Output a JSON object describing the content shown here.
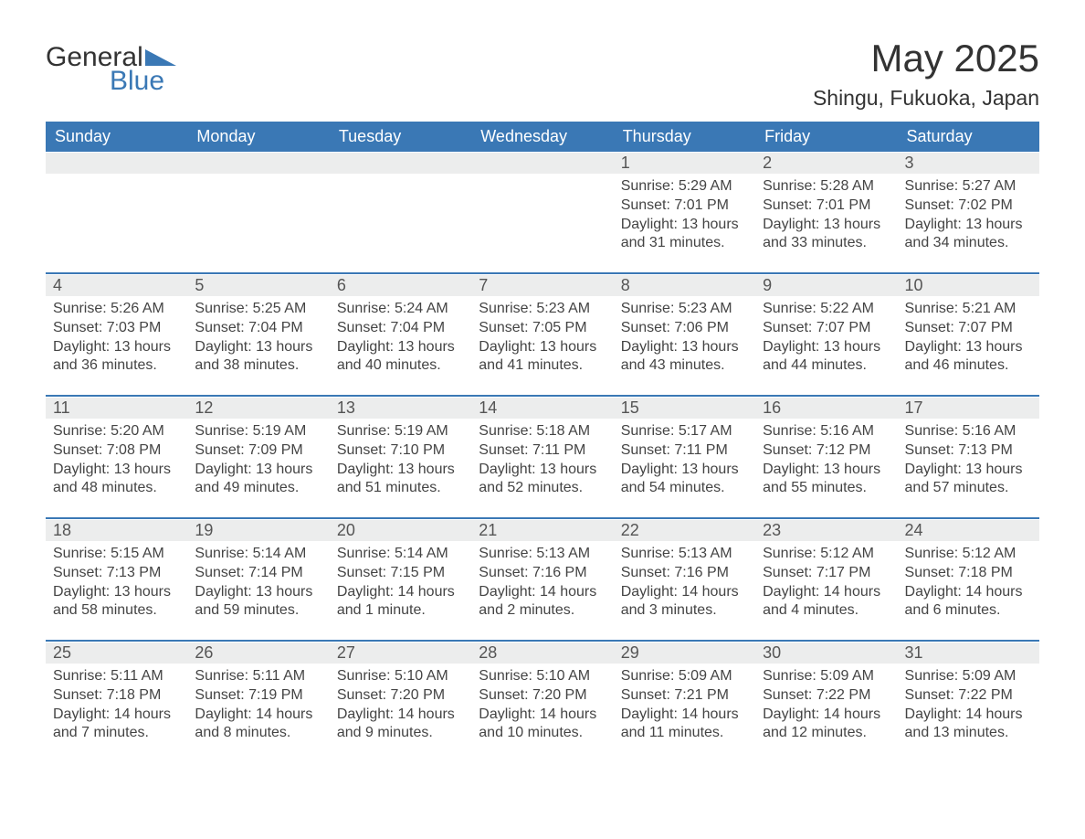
{
  "logo": {
    "word1": "General",
    "word2": "Blue"
  },
  "title": "May 2025",
  "location": "Shingu, Fukuoka, Japan",
  "colors": {
    "header_bg": "#3a78b5",
    "header_text": "#ffffff",
    "daynum_bg": "#eceded",
    "daynum_text": "#555555",
    "body_text": "#444444",
    "week_border": "#3a78b5",
    "page_bg": "#ffffff",
    "logo_accent": "#3a78b5"
  },
  "typography": {
    "title_fontsize": 42,
    "location_fontsize": 23,
    "dow_fontsize": 18,
    "daynum_fontsize": 18,
    "body_fontsize": 16
  },
  "dow": [
    "Sunday",
    "Monday",
    "Tuesday",
    "Wednesday",
    "Thursday",
    "Friday",
    "Saturday"
  ],
  "weeks": [
    [
      {
        "n": "",
        "sunrise": "",
        "sunset": "",
        "daylight": ""
      },
      {
        "n": "",
        "sunrise": "",
        "sunset": "",
        "daylight": ""
      },
      {
        "n": "",
        "sunrise": "",
        "sunset": "",
        "daylight": ""
      },
      {
        "n": "",
        "sunrise": "",
        "sunset": "",
        "daylight": ""
      },
      {
        "n": "1",
        "sunrise": "Sunrise: 5:29 AM",
        "sunset": "Sunset: 7:01 PM",
        "daylight": "Daylight: 13 hours and 31 minutes."
      },
      {
        "n": "2",
        "sunrise": "Sunrise: 5:28 AM",
        "sunset": "Sunset: 7:01 PM",
        "daylight": "Daylight: 13 hours and 33 minutes."
      },
      {
        "n": "3",
        "sunrise": "Sunrise: 5:27 AM",
        "sunset": "Sunset: 7:02 PM",
        "daylight": "Daylight: 13 hours and 34 minutes."
      }
    ],
    [
      {
        "n": "4",
        "sunrise": "Sunrise: 5:26 AM",
        "sunset": "Sunset: 7:03 PM",
        "daylight": "Daylight: 13 hours and 36 minutes."
      },
      {
        "n": "5",
        "sunrise": "Sunrise: 5:25 AM",
        "sunset": "Sunset: 7:04 PM",
        "daylight": "Daylight: 13 hours and 38 minutes."
      },
      {
        "n": "6",
        "sunrise": "Sunrise: 5:24 AM",
        "sunset": "Sunset: 7:04 PM",
        "daylight": "Daylight: 13 hours and 40 minutes."
      },
      {
        "n": "7",
        "sunrise": "Sunrise: 5:23 AM",
        "sunset": "Sunset: 7:05 PM",
        "daylight": "Daylight: 13 hours and 41 minutes."
      },
      {
        "n": "8",
        "sunrise": "Sunrise: 5:23 AM",
        "sunset": "Sunset: 7:06 PM",
        "daylight": "Daylight: 13 hours and 43 minutes."
      },
      {
        "n": "9",
        "sunrise": "Sunrise: 5:22 AM",
        "sunset": "Sunset: 7:07 PM",
        "daylight": "Daylight: 13 hours and 44 minutes."
      },
      {
        "n": "10",
        "sunrise": "Sunrise: 5:21 AM",
        "sunset": "Sunset: 7:07 PM",
        "daylight": "Daylight: 13 hours and 46 minutes."
      }
    ],
    [
      {
        "n": "11",
        "sunrise": "Sunrise: 5:20 AM",
        "sunset": "Sunset: 7:08 PM",
        "daylight": "Daylight: 13 hours and 48 minutes."
      },
      {
        "n": "12",
        "sunrise": "Sunrise: 5:19 AM",
        "sunset": "Sunset: 7:09 PM",
        "daylight": "Daylight: 13 hours and 49 minutes."
      },
      {
        "n": "13",
        "sunrise": "Sunrise: 5:19 AM",
        "sunset": "Sunset: 7:10 PM",
        "daylight": "Daylight: 13 hours and 51 minutes."
      },
      {
        "n": "14",
        "sunrise": "Sunrise: 5:18 AM",
        "sunset": "Sunset: 7:11 PM",
        "daylight": "Daylight: 13 hours and 52 minutes."
      },
      {
        "n": "15",
        "sunrise": "Sunrise: 5:17 AM",
        "sunset": "Sunset: 7:11 PM",
        "daylight": "Daylight: 13 hours and 54 minutes."
      },
      {
        "n": "16",
        "sunrise": "Sunrise: 5:16 AM",
        "sunset": "Sunset: 7:12 PM",
        "daylight": "Daylight: 13 hours and 55 minutes."
      },
      {
        "n": "17",
        "sunrise": "Sunrise: 5:16 AM",
        "sunset": "Sunset: 7:13 PM",
        "daylight": "Daylight: 13 hours and 57 minutes."
      }
    ],
    [
      {
        "n": "18",
        "sunrise": "Sunrise: 5:15 AM",
        "sunset": "Sunset: 7:13 PM",
        "daylight": "Daylight: 13 hours and 58 minutes."
      },
      {
        "n": "19",
        "sunrise": "Sunrise: 5:14 AM",
        "sunset": "Sunset: 7:14 PM",
        "daylight": "Daylight: 13 hours and 59 minutes."
      },
      {
        "n": "20",
        "sunrise": "Sunrise: 5:14 AM",
        "sunset": "Sunset: 7:15 PM",
        "daylight": "Daylight: 14 hours and 1 minute."
      },
      {
        "n": "21",
        "sunrise": "Sunrise: 5:13 AM",
        "sunset": "Sunset: 7:16 PM",
        "daylight": "Daylight: 14 hours and 2 minutes."
      },
      {
        "n": "22",
        "sunrise": "Sunrise: 5:13 AM",
        "sunset": "Sunset: 7:16 PM",
        "daylight": "Daylight: 14 hours and 3 minutes."
      },
      {
        "n": "23",
        "sunrise": "Sunrise: 5:12 AM",
        "sunset": "Sunset: 7:17 PM",
        "daylight": "Daylight: 14 hours and 4 minutes."
      },
      {
        "n": "24",
        "sunrise": "Sunrise: 5:12 AM",
        "sunset": "Sunset: 7:18 PM",
        "daylight": "Daylight: 14 hours and 6 minutes."
      }
    ],
    [
      {
        "n": "25",
        "sunrise": "Sunrise: 5:11 AM",
        "sunset": "Sunset: 7:18 PM",
        "daylight": "Daylight: 14 hours and 7 minutes."
      },
      {
        "n": "26",
        "sunrise": "Sunrise: 5:11 AM",
        "sunset": "Sunset: 7:19 PM",
        "daylight": "Daylight: 14 hours and 8 minutes."
      },
      {
        "n": "27",
        "sunrise": "Sunrise: 5:10 AM",
        "sunset": "Sunset: 7:20 PM",
        "daylight": "Daylight: 14 hours and 9 minutes."
      },
      {
        "n": "28",
        "sunrise": "Sunrise: 5:10 AM",
        "sunset": "Sunset: 7:20 PM",
        "daylight": "Daylight: 14 hours and 10 minutes."
      },
      {
        "n": "29",
        "sunrise": "Sunrise: 5:09 AM",
        "sunset": "Sunset: 7:21 PM",
        "daylight": "Daylight: 14 hours and 11 minutes."
      },
      {
        "n": "30",
        "sunrise": "Sunrise: 5:09 AM",
        "sunset": "Sunset: 7:22 PM",
        "daylight": "Daylight: 14 hours and 12 minutes."
      },
      {
        "n": "31",
        "sunrise": "Sunrise: 5:09 AM",
        "sunset": "Sunset: 7:22 PM",
        "daylight": "Daylight: 14 hours and 13 minutes."
      }
    ]
  ]
}
